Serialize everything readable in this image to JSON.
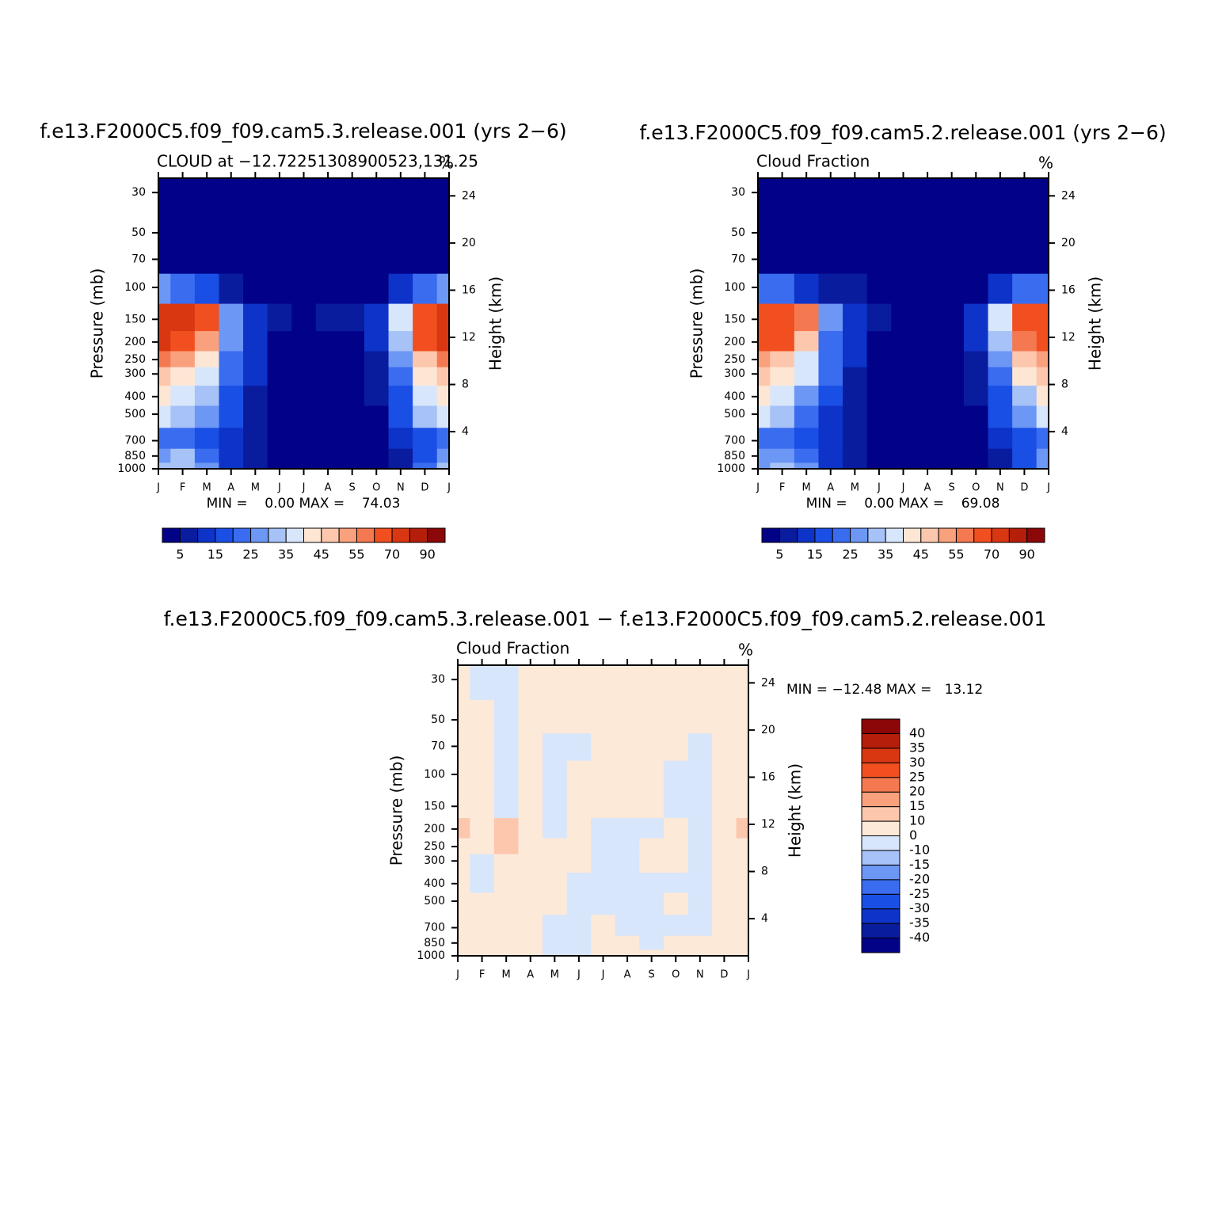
{
  "chart_data": [
    {
      "type": "contour",
      "title": "f.e13.F2000C5.f09_f09.cam5.3.release.001  (yrs 2−6)",
      "left_string": "CLOUD at −12.72251308900523,131.25",
      "right_string": "%",
      "y_label": "Pressure (mb)",
      "y2_label": "Height (km)",
      "categories": [
        "J",
        "F",
        "M",
        "A",
        "M",
        "J",
        "J",
        "A",
        "S",
        "O",
        "N",
        "D",
        "J"
      ],
      "log_y": true,
      "ylim": [
        1000,
        25
      ],
      "yticks": [
        30,
        50,
        70,
        100,
        150,
        200,
        250,
        300,
        400,
        500,
        700,
        850,
        1000
      ],
      "y2lim": [
        0.85,
        25.5
      ],
      "y2ticks": [
        4,
        8,
        12,
        16,
        20,
        24
      ],
      "y": [
        1000,
        850,
        700,
        500,
        400,
        300,
        250,
        200,
        150,
        100,
        70,
        50,
        30
      ],
      "z": [
        [
          30,
          32,
          25,
          12,
          6,
          3,
          2,
          2,
          1,
          3,
          8,
          20,
          30
        ],
        [
          28,
          30,
          22,
          12,
          6,
          3,
          2,
          2,
          1,
          3,
          8,
          18,
          28
        ],
        [
          22,
          20,
          15,
          10,
          5,
          2,
          1,
          1,
          1,
          3,
          10,
          15,
          22
        ],
        [
          38,
          34,
          25,
          15,
          7,
          2,
          1,
          1,
          1,
          4,
          15,
          30,
          38
        ],
        [
          40,
          38,
          30,
          18,
          8,
          2,
          1,
          1,
          1,
          5,
          18,
          35,
          40
        ],
        [
          45,
          42,
          35,
          20,
          10,
          3,
          1,
          1,
          1,
          6,
          20,
          40,
          45
        ],
        [
          55,
          50,
          40,
          22,
          12,
          4,
          2,
          2,
          2,
          8,
          25,
          48,
          55
        ],
        [
          70,
          65,
          50,
          25,
          12,
          4,
          2,
          3,
          3,
          10,
          30,
          60,
          70
        ],
        [
          74,
          72,
          60,
          28,
          12,
          5,
          3,
          5,
          5,
          12,
          35,
          66,
          74
        ],
        [
          25,
          22,
          15,
          6,
          3,
          1,
          1,
          1,
          1,
          3,
          10,
          22,
          25
        ],
        [
          0,
          0,
          0,
          0,
          0,
          0,
          0,
          0,
          0,
          0,
          0,
          0,
          0
        ],
        [
          0,
          0,
          0,
          0,
          0,
          0,
          0,
          0,
          0,
          0,
          0,
          0,
          0
        ],
        [
          0,
          0,
          0,
          0,
          0,
          0,
          0,
          0,
          0,
          0,
          0,
          0,
          0
        ]
      ],
      "contour_levels": [
        5,
        10,
        15,
        20,
        25,
        30,
        35,
        40,
        45,
        50,
        55,
        60,
        70,
        80,
        90
      ],
      "colorbar_ticks": [
        5,
        15,
        25,
        35,
        45,
        55,
        70,
        90
      ],
      "colorbar": "horizontal",
      "colors": [
        "#020288",
        "#0a1c9e",
        "#0d33c8",
        "#1a4fe6",
        "#3a6cf0",
        "#6d97f5",
        "#a6c2f7",
        "#d7e6fb",
        "#fde6d4",
        "#fcc7ad",
        "#f9a07d",
        "#f57950",
        "#f24f20",
        "#d93712",
        "#b51e0a",
        "#8c0707"
      ],
      "stats": "MIN =    0.00 MAX =    74.03"
    },
    {
      "type": "contour",
      "title": "f.e13.F2000C5.f09_f09.cam5.2.release.001  (yrs 2−6)",
      "left_string": "Cloud Fraction",
      "right_string": "%",
      "y_label": "Pressure (mb)",
      "y2_label": "Height (km)",
      "categories": [
        "J",
        "F",
        "M",
        "A",
        "M",
        "J",
        "J",
        "A",
        "S",
        "O",
        "N",
        "D",
        "J"
      ],
      "log_y": true,
      "ylim": [
        1000,
        25
      ],
      "yticks": [
        30,
        50,
        70,
        100,
        150,
        200,
        250,
        300,
        400,
        500,
        700,
        850,
        1000
      ],
      "y2lim": [
        0.85,
        25.5
      ],
      "y2ticks": [
        4,
        8,
        12,
        16,
        20,
        24
      ],
      "y": [
        1000,
        850,
        700,
        500,
        400,
        300,
        250,
        200,
        150,
        100,
        70,
        50,
        30
      ],
      "z": [
        [
          28,
          30,
          25,
          12,
          6,
          3,
          2,
          2,
          1,
          2,
          6,
          18,
          28
        ],
        [
          26,
          28,
          22,
          10,
          5,
          3,
          2,
          2,
          1,
          3,
          8,
          18,
          26
        ],
        [
          22,
          22,
          16,
          10,
          5,
          2,
          1,
          1,
          1,
          3,
          10,
          16,
          22
        ],
        [
          35,
          30,
          24,
          14,
          6,
          2,
          1,
          1,
          1,
          4,
          15,
          28,
          35
        ],
        [
          40,
          36,
          28,
          16,
          7,
          2,
          1,
          1,
          1,
          5,
          18,
          34,
          40
        ],
        [
          48,
          44,
          36,
          20,
          9,
          3,
          1,
          1,
          1,
          8,
          22,
          40,
          48
        ],
        [
          52,
          48,
          38,
          22,
          10,
          3,
          1,
          1,
          1,
          8,
          25,
          45,
          52
        ],
        [
          62,
          60,
          48,
          24,
          12,
          4,
          2,
          3,
          3,
          10,
          32,
          58,
          62
        ],
        [
          69,
          66,
          56,
          28,
          14,
          6,
          3,
          4,
          4,
          12,
          38,
          64,
          69
        ],
        [
          22,
          20,
          14,
          8,
          5,
          3,
          2,
          2,
          2,
          4,
          10,
          20,
          22
        ],
        [
          0,
          0,
          0,
          0,
          0,
          0,
          0,
          0,
          0,
          0,
          0,
          0,
          0
        ],
        [
          0,
          0,
          0,
          0,
          0,
          0,
          0,
          0,
          0,
          0,
          0,
          0,
          0
        ],
        [
          0,
          0,
          0,
          0,
          0,
          0,
          0,
          0,
          0,
          0,
          0,
          0,
          0
        ]
      ],
      "contour_levels": [
        5,
        10,
        15,
        20,
        25,
        30,
        35,
        40,
        45,
        50,
        55,
        60,
        70,
        80,
        90
      ],
      "colorbar_ticks": [
        5,
        15,
        25,
        35,
        45,
        55,
        70,
        90
      ],
      "colorbar": "horizontal",
      "colors": [
        "#020288",
        "#0a1c9e",
        "#0d33c8",
        "#1a4fe6",
        "#3a6cf0",
        "#6d97f5",
        "#a6c2f7",
        "#d7e6fb",
        "#fde6d4",
        "#fcc7ad",
        "#f9a07d",
        "#f57950",
        "#f24f20",
        "#d93712",
        "#b51e0a",
        "#8c0707"
      ],
      "stats": "MIN =    0.00 MAX =    69.08"
    },
    {
      "type": "contour",
      "title": "f.e13.F2000C5.f09_f09.cam5.3.release.001  −  f.e13.F2000C5.f09_f09.cam5.2.release.001",
      "left_string": "Cloud Fraction",
      "right_string": "%",
      "y_label": "Pressure (mb)",
      "y2_label": "Height (km)",
      "categories": [
        "J",
        "F",
        "M",
        "A",
        "M",
        "J",
        "J",
        "A",
        "S",
        "O",
        "N",
        "D",
        "J"
      ],
      "log_y": true,
      "ylim": [
        1000,
        25
      ],
      "yticks": [
        30,
        50,
        70,
        100,
        150,
        200,
        250,
        300,
        400,
        500,
        700,
        850,
        1000
      ],
      "y2lim": [
        0.85,
        25.5
      ],
      "y2ticks": [
        4,
        8,
        12,
        16,
        20,
        24
      ],
      "y": [
        1000,
        850,
        700,
        500,
        400,
        300,
        250,
        200,
        150,
        100,
        70,
        50,
        30
      ],
      "z": [
        [
          3,
          3,
          3,
          3,
          -2,
          -2,
          3,
          3,
          2,
          3,
          3,
          3,
          3
        ],
        [
          3,
          3,
          3,
          3,
          -2,
          -3,
          3,
          3,
          -2,
          3,
          3,
          3,
          3
        ],
        [
          3,
          3,
          3,
          3,
          -3,
          -3,
          3,
          -3,
          -3,
          -2,
          -3,
          3,
          3
        ],
        [
          3,
          3,
          3,
          3,
          3,
          -3,
          -3,
          -3,
          -3,
          3,
          -3,
          3,
          3
        ],
        [
          3,
          -3,
          3,
          3,
          3,
          -3,
          -3,
          -3,
          -3,
          -3,
          -3,
          3,
          3
        ],
        [
          3,
          -3,
          3,
          3,
          3,
          3,
          -3,
          -3,
          3,
          3,
          -3,
          3,
          3
        ],
        [
          3,
          3,
          12,
          3,
          3,
          3,
          -3,
          -3,
          3,
          3,
          -3,
          3,
          3
        ],
        [
          11,
          3,
          12,
          3,
          -3,
          3,
          -3,
          -3,
          -3,
          3,
          -3,
          3,
          11
        ],
        [
          3,
          3,
          -3,
          3,
          -3,
          3,
          3,
          3,
          3,
          -3,
          -3,
          3,
          3
        ],
        [
          3,
          3,
          -3,
          3,
          -3,
          3,
          3,
          3,
          3,
          -3,
          -3,
          3,
          3
        ],
        [
          3,
          3,
          -3,
          3,
          -3,
          -3,
          3,
          3,
          3,
          3,
          -3,
          3,
          3
        ],
        [
          3,
          3,
          -3,
          3,
          3,
          3,
          3,
          3,
          3,
          3,
          3,
          3,
          3
        ],
        [
          3,
          -3,
          -3,
          3,
          3,
          3,
          3,
          3,
          3,
          3,
          3,
          3,
          3
        ]
      ],
      "contour_levels": [
        -40,
        -35,
        -30,
        -25,
        -20,
        -15,
        -10,
        0,
        10,
        15,
        20,
        25,
        30,
        35,
        40
      ],
      "colorbar_ticks": [
        -40,
        -35,
        -30,
        -25,
        -20,
        -15,
        -10,
        0,
        10,
        15,
        20,
        25,
        30,
        35,
        40
      ],
      "colorbar": "vertical",
      "colors": [
        "#020288",
        "#0a1c9e",
        "#0d33c8",
        "#1a4fe6",
        "#3a6cf0",
        "#6d97f5",
        "#a6c2f7",
        "#d7e6fb",
        "#fde9d8",
        "#fcc7ad",
        "#f9a07d",
        "#f57950",
        "#f24f20",
        "#d93712",
        "#b51e0a",
        "#8c0707"
      ],
      "stats": "MIN = −12.48 MAX =   13.12"
    }
  ]
}
